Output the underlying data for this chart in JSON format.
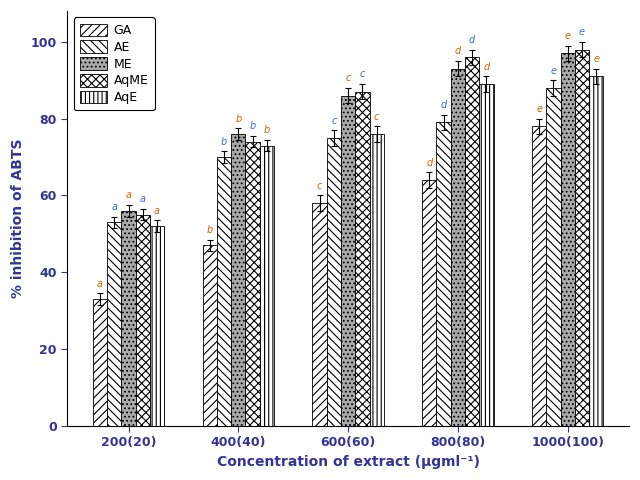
{
  "groups": [
    "200(20)",
    "400(40)",
    "600(60)",
    "800(80)",
    "1000(100)"
  ],
  "series": [
    "GA",
    "AE",
    "ME",
    "AqME",
    "AqE"
  ],
  "values": [
    [
      33,
      53,
      56,
      55,
      52
    ],
    [
      47,
      70,
      76,
      74,
      73
    ],
    [
      58,
      75,
      86,
      87,
      76
    ],
    [
      64,
      79,
      93,
      96,
      89
    ],
    [
      78,
      88,
      97,
      98,
      91
    ]
  ],
  "errors": [
    [
      1.5,
      1.5,
      1.5,
      1.5,
      1.5
    ],
    [
      1.5,
      1.5,
      1.5,
      1.5,
      1.5
    ],
    [
      2.0,
      2.0,
      2.0,
      2.0,
      2.0
    ],
    [
      2.0,
      2.0,
      2.0,
      2.0,
      2.0
    ],
    [
      2.0,
      2.0,
      2.0,
      2.0,
      2.0
    ]
  ],
  "letters": [
    [
      "a",
      "a",
      "a",
      "a",
      "a"
    ],
    [
      "b",
      "b",
      "b",
      "b",
      "b"
    ],
    [
      "c",
      "c",
      "c",
      "c",
      "c"
    ],
    [
      "d",
      "d",
      "d",
      "d",
      "d"
    ],
    [
      "e",
      "e",
      "e",
      "e",
      "e"
    ]
  ],
  "ylabel": "% inhibition of ABTS",
  "xlabel": "Concentration of extract (μgml⁻¹)",
  "ylim": [
    0,
    108
  ],
  "yticks": [
    0,
    20,
    40,
    60,
    80,
    100
  ],
  "bar_width": 0.13,
  "face_colors": [
    "white",
    "white",
    "#aaaaaa",
    "white",
    "white"
  ],
  "lcolors": [
    "#cc6600",
    "#4169e1",
    "#cc6600",
    "#4169e1",
    "#cc6600"
  ]
}
